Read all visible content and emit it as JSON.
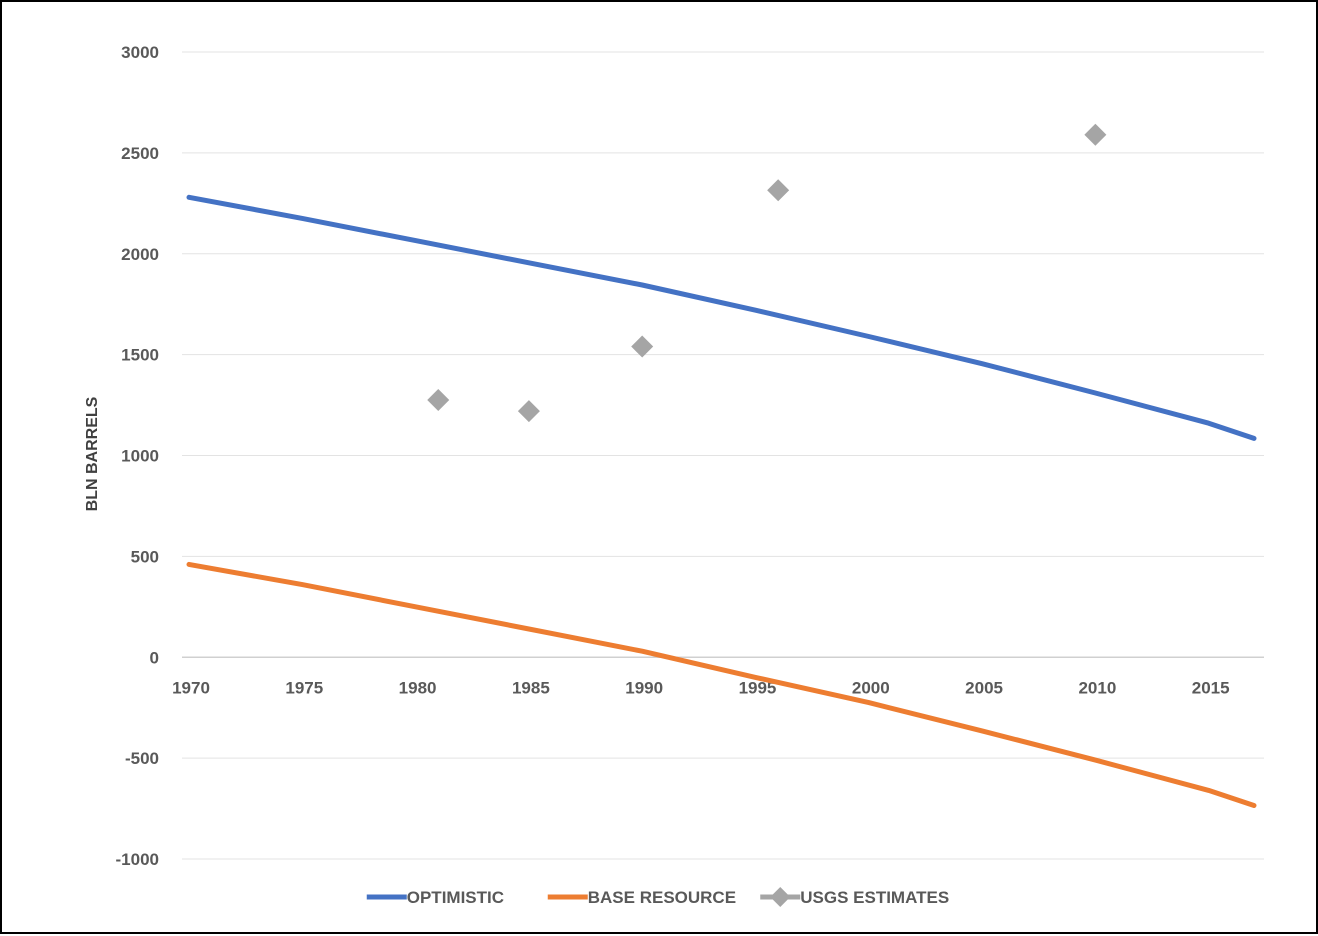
{
  "chart_data": {
    "type": "line",
    "title": "",
    "xlabel": "",
    "ylabel": "BLN BARRELS",
    "xlim": [
      1970,
      2017
    ],
    "ylim": [
      -1000,
      3000
    ],
    "x_ticks": [
      "1970",
      "1975",
      "1980",
      "1985",
      "1990",
      "1995",
      "2000",
      "2005",
      "2010",
      "2015"
    ],
    "y_ticks": [
      "3000",
      "2500",
      "2000",
      "1500",
      "1000",
      "500",
      "0",
      "-500",
      "-1000"
    ],
    "grid": "horizontal",
    "legend_position": "bottom",
    "series": [
      {
        "name": "OPTIMISTIC",
        "kind": "line",
        "color": "#4472C4",
        "x": [
          1970,
          1975,
          1980,
          1985,
          1990,
          1995,
          2000,
          2005,
          2010,
          2015,
          2017
        ],
        "y": [
          2280,
          2175,
          2065,
          1955,
          1845,
          1720,
          1590,
          1455,
          1310,
          1160,
          1085
        ]
      },
      {
        "name": "BASE RESOURCE",
        "kind": "line",
        "color": "#ED7D31",
        "x": [
          1970,
          1975,
          1980,
          1985,
          1990,
          1995,
          2000,
          2005,
          2010,
          2015,
          2017
        ],
        "y": [
          460,
          360,
          250,
          140,
          30,
          -100,
          -225,
          -365,
          -510,
          -660,
          -735
        ]
      },
      {
        "name": "USGS ESTIMATES",
        "kind": "scatter",
        "color": "#A5A5A5",
        "x": [
          1981,
          1985,
          1990,
          1996,
          2010
        ],
        "y": [
          1275,
          1220,
          1540,
          2315,
          2590
        ]
      }
    ]
  }
}
